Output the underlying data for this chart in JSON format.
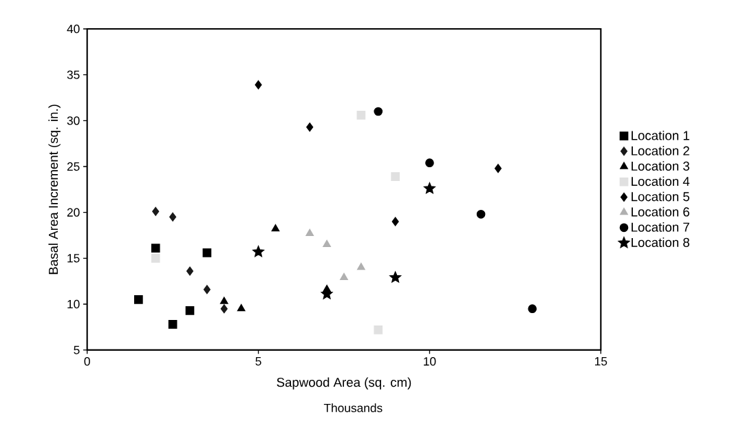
{
  "chart_data": {
    "type": "scatter",
    "xlabel": "Sapwood Area (sq. cm)",
    "ylabel": "Basal Area Increment (sq. in.)",
    "annotations": [
      "Thousands"
    ],
    "xlim": [
      0,
      15
    ],
    "ylim": [
      5,
      40
    ],
    "xticks": [
      0,
      5,
      10,
      15
    ],
    "yticks": [
      5,
      10,
      15,
      20,
      25,
      30,
      35,
      40
    ],
    "grid": false,
    "legend": "right",
    "series": [
      {
        "name": "Location 1",
        "color": "#000000",
        "marker": "square",
        "x": [
          1.5,
          2,
          2.5,
          3,
          3.5
        ],
        "values": [
          10.5,
          16.1,
          7.8,
          9.3,
          15.6
        ]
      },
      {
        "name": "Location 2",
        "color": "#1a1a1a",
        "marker": "diamond",
        "x": [
          2,
          2.5,
          3,
          3.5,
          4
        ],
        "values": [
          20.1,
          19.5,
          13.6,
          11.6,
          9.5
        ]
      },
      {
        "name": "Location 3",
        "color": "#000000",
        "marker": "triangle",
        "x": [
          4,
          4.5,
          5.5,
          7
        ],
        "values": [
          10.3,
          9.5,
          18.2,
          11.6
        ]
      },
      {
        "name": "Location 4",
        "color": "#e0e0e0",
        "marker": "square",
        "x": [
          2,
          8,
          8.5,
          9
        ],
        "values": [
          15,
          30.6,
          7.2,
          23.9
        ]
      },
      {
        "name": "Location 5",
        "color": "#000000",
        "marker": "diamond",
        "x": [
          5,
          6.5,
          9,
          12
        ],
        "values": [
          33.9,
          29.3,
          19.0,
          24.8
        ]
      },
      {
        "name": "Location 6",
        "color": "#b0b0b0",
        "marker": "triangle",
        "x": [
          6.5,
          7,
          7.5,
          8
        ],
        "values": [
          17.7,
          16.5,
          12.9,
          14.0
        ]
      },
      {
        "name": "Location 7",
        "color": "#000000",
        "marker": "circle",
        "x": [
          8.5,
          10,
          11.5,
          13
        ],
        "values": [
          31.0,
          25.4,
          19.8,
          9.5
        ]
      },
      {
        "name": "Location 8",
        "color": "#000000",
        "marker": "star",
        "x": [
          5,
          7,
          9,
          10
        ],
        "values": [
          15.7,
          11.1,
          12.9,
          22.6
        ]
      }
    ]
  }
}
